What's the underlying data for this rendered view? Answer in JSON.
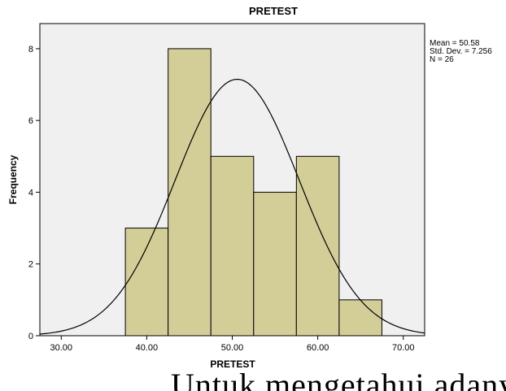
{
  "chart_data": {
    "type": "bar",
    "title": "PRETEST",
    "xlabel": "PRETEST",
    "ylabel": "Frequency",
    "xlim": [
      27.5,
      72.5
    ],
    "ylim": [
      0,
      8.7
    ],
    "x_ticks": [
      "30.00",
      "40.00",
      "50.00",
      "60.00",
      "70.00"
    ],
    "x_tick_values": [
      30,
      40,
      50,
      60,
      70
    ],
    "y_ticks": [
      "0",
      "2",
      "4",
      "6",
      "8"
    ],
    "y_tick_values": [
      0,
      2,
      4,
      6,
      8
    ],
    "bins": [
      {
        "from": 37.5,
        "to": 42.5,
        "count": 3
      },
      {
        "from": 42.5,
        "to": 47.5,
        "count": 8
      },
      {
        "from": 47.5,
        "to": 52.5,
        "count": 5
      },
      {
        "from": 52.5,
        "to": 57.5,
        "count": 4
      },
      {
        "from": 57.5,
        "to": 62.5,
        "count": 5
      },
      {
        "from": 62.5,
        "to": 67.5,
        "count": 1
      }
    ],
    "normal_curve": {
      "mean": 50.58,
      "sd": 7.256,
      "n": 26,
      "bin_width": 5
    },
    "stats": [
      "Mean = 50.58",
      "Std. Dev. = 7.256",
      "N = 26"
    ],
    "colors": {
      "plot_bg": "#f0f0f0",
      "bar_fill": "#d3ce97",
      "bar_stroke": "#000000",
      "curve": "#000000"
    }
  },
  "caption_fragment": "Untuk mengetahui adanya pengaruh d"
}
